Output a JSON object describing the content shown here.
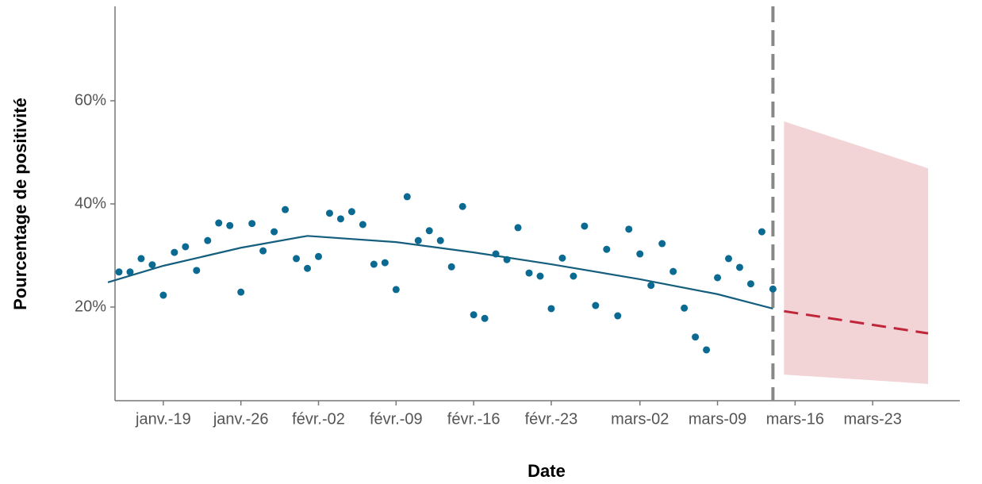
{
  "chart_data": {
    "type": "scatter",
    "x_label": "Date",
    "y_label": "Pourcentage de positivité",
    "xlim": [
      "01-15",
      "03-30"
    ],
    "ylim": [
      2,
      78
    ],
    "xticks": [
      {
        "value": "01-19",
        "label": "janv.-19"
      },
      {
        "value": "01-26",
        "label": "janv.-26"
      },
      {
        "value": "02-02",
        "label": "févr.-02"
      },
      {
        "value": "02-09",
        "label": "févr.-09"
      },
      {
        "value": "02-16",
        "label": "févr.-16"
      },
      {
        "value": "02-23",
        "label": "févr.-23"
      },
      {
        "value": "03-02",
        "label": "mars-02"
      },
      {
        "value": "03-09",
        "label": "mars-09"
      },
      {
        "value": "03-16",
        "label": "mars-16"
      },
      {
        "value": "03-23",
        "label": "mars-23"
      }
    ],
    "yticks": [
      {
        "value": 20,
        "label": "20%"
      },
      {
        "value": 40,
        "label": "40%"
      },
      {
        "value": 60,
        "label": "60%"
      }
    ],
    "points": {
      "color": "#0b6a91",
      "x": [
        "01-15",
        "01-16",
        "01-17",
        "01-18",
        "01-19",
        "01-20",
        "01-21",
        "01-22",
        "01-23",
        "01-24",
        "01-25",
        "01-26",
        "01-27",
        "01-28",
        "01-29",
        "01-30",
        "01-31",
        "02-01",
        "02-02",
        "02-03",
        "02-04",
        "02-05",
        "02-06",
        "02-07",
        "02-08",
        "02-09",
        "02-10",
        "02-11",
        "02-12",
        "02-13",
        "02-14",
        "02-15",
        "02-16",
        "02-17",
        "02-18",
        "02-19",
        "02-20",
        "02-21",
        "02-22",
        "02-23",
        "02-24",
        "02-25",
        "02-26",
        "02-27",
        "02-28",
        "02-29",
        "03-01",
        "03-02",
        "03-03",
        "03-04",
        "03-05",
        "03-06",
        "03-07",
        "03-08",
        "03-09",
        "03-10",
        "03-11",
        "03-12",
        "03-13",
        "03-14"
      ],
      "values": [
        26.8,
        26.8,
        29.4,
        28.2,
        22.3,
        30.6,
        31.7,
        27.1,
        32.9,
        36.3,
        35.8,
        22.9,
        36.2,
        30.9,
        34.6,
        38.9,
        29.4,
        27.5,
        29.8,
        38.2,
        37.1,
        38.5,
        36.0,
        28.3,
        28.6,
        23.4,
        41.4,
        32.9,
        34.8,
        32.9,
        27.8,
        39.5,
        18.5,
        17.8,
        30.3,
        29.2,
        35.4,
        26.6,
        26.0,
        19.7,
        29.5,
        26.0,
        35.7,
        20.3,
        31.2,
        18.3,
        35.1,
        30.3,
        24.2,
        32.3,
        26.9,
        19.8,
        14.2,
        11.7,
        25.7,
        29.4,
        27.7,
        24.5,
        34.6,
        23.5
      ]
    },
    "trend": {
      "color": "#155e7d",
      "x": [
        "01-14",
        "01-19",
        "01-26",
        "02-01",
        "02-09",
        "02-16",
        "02-23",
        "03-02",
        "03-09",
        "03-14"
      ],
      "values": [
        24.8,
        28.0,
        31.5,
        33.8,
        32.6,
        30.6,
        28.3,
        25.4,
        22.5,
        19.7
      ]
    },
    "cutoff": "03-14",
    "forecast": {
      "color": "#c0263a",
      "band_color": "#f2d3d6",
      "x": [
        "03-15",
        "03-28"
      ],
      "values": [
        19.2,
        14.9
      ],
      "lower": [
        6.9,
        5.1
      ],
      "upper": [
        56.0,
        46.9
      ]
    }
  }
}
